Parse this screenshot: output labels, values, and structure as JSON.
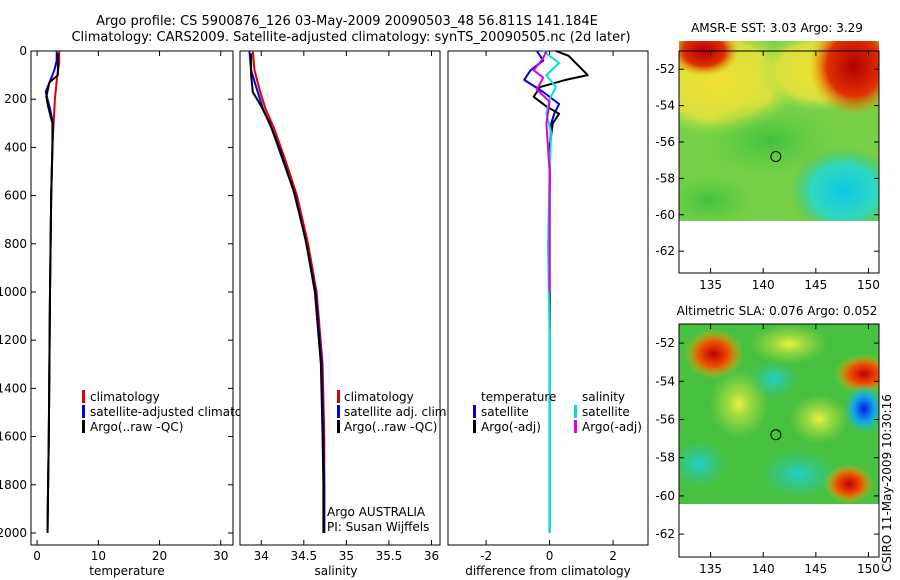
{
  "header": {
    "line1": "Argo profile: CS 5900876_126 03-May-2009 20090503_48 56.811S 141.184E",
    "line2": "Climatology: CARS2009. Satellite-adjusted climatology: synTS_20090505.nc (2d later)"
  },
  "credit": "CSIRO 11-May-2009 10:30:16",
  "chart_data": [
    {
      "type": "line",
      "id": "temperature",
      "xlabel": "temperature",
      "xlim": [
        -1,
        32
      ],
      "ylim": [
        0,
        2050
      ],
      "y_reversed": true,
      "xticks": [
        0,
        10,
        20,
        30
      ],
      "yticks": [
        0,
        200,
        400,
        600,
        800,
        1000,
        1200,
        1400,
        1600,
        1800,
        2000
      ],
      "legend": [
        "climatology",
        "satellite-adjusted climatology",
        "Argo(..raw -QC)"
      ],
      "series": [
        {
          "name": "climatology",
          "color": "#e00000",
          "x": [
            3.6,
            3.6,
            3.3,
            2.9,
            2.7,
            2.5,
            2.3,
            2.2,
            2.1,
            2.0,
            1.9,
            1.8,
            1.7
          ],
          "y": [
            0,
            50,
            100,
            200,
            300,
            400,
            600,
            800,
            1000,
            1300,
            1600,
            1800,
            2000
          ]
        },
        {
          "name": "satellite-adjusted climatology",
          "color": "#0000e0",
          "x": [
            3.2,
            3.2,
            2.8,
            1.4,
            2.1,
            2.6,
            2.5,
            2.3,
            2.2,
            2.1,
            2.0,
            1.9,
            1.8,
            1.7
          ],
          "y": [
            0,
            40,
            80,
            170,
            240,
            300,
            400,
            600,
            800,
            1000,
            1300,
            1600,
            1800,
            2000
          ]
        },
        {
          "name": "Argo(..raw -QC)",
          "color": "#000000",
          "x": [
            3.4,
            3.4,
            2.0,
            1.5,
            1.8,
            2.5,
            2.5,
            2.3,
            2.2,
            2.1,
            2.0,
            1.9,
            1.8,
            1.7
          ],
          "y": [
            10,
            100,
            130,
            190,
            230,
            300,
            400,
            600,
            800,
            1000,
            1300,
            1600,
            1800,
            2000
          ]
        }
      ]
    },
    {
      "type": "line",
      "id": "salinity",
      "xlabel": "salinity",
      "xlim": [
        33.75,
        36.1
      ],
      "ylim": [
        0,
        2050
      ],
      "y_reversed": true,
      "xticks": [
        34,
        34.5,
        35,
        35.5,
        36
      ],
      "legend": [
        "climatology",
        "satellite adj. clim.",
        "Argo(..raw -QC)"
      ],
      "notes": [
        "Argo AUSTRALIA",
        "PI: Susan Wijffels"
      ],
      "series": [
        {
          "name": "climatology",
          "color": "#e00000",
          "x": [
            33.9,
            33.92,
            33.98,
            34.05,
            34.15,
            34.28,
            34.42,
            34.55,
            34.65,
            34.72,
            34.74,
            34.74,
            34.74
          ],
          "y": [
            0,
            80,
            160,
            240,
            320,
            450,
            600,
            800,
            1000,
            1300,
            1600,
            1800,
            2000
          ]
        },
        {
          "name": "satellite adj. clim.",
          "color": "#0000e0",
          "x": [
            33.86,
            33.88,
            33.95,
            34.02,
            34.12,
            34.25,
            34.4,
            34.53,
            34.64,
            34.71,
            34.73,
            34.74,
            34.74
          ],
          "y": [
            0,
            80,
            160,
            240,
            320,
            450,
            600,
            800,
            1000,
            1300,
            1600,
            1800,
            2000
          ]
        },
        {
          "name": "Argo(..raw -QC)",
          "color": "#000000",
          "x": [
            33.88,
            33.88,
            33.9,
            34.0,
            34.1,
            34.23,
            34.38,
            34.52,
            34.63,
            34.7,
            34.72,
            34.73,
            34.73
          ],
          "y": [
            10,
            100,
            170,
            230,
            300,
            420,
            580,
            780,
            1000,
            1300,
            1600,
            1800,
            2000
          ]
        }
      ]
    },
    {
      "type": "line",
      "id": "difference",
      "xlabel": "difference from climatology",
      "xlim": [
        -3.2,
        3.1
      ],
      "ylim": [
        0,
        2050
      ],
      "y_reversed": true,
      "xticks": [
        -2,
        0,
        2
      ],
      "legend_temperature": {
        "heading": "temperature",
        "items": [
          "satellite",
          "Argo(-adj)"
        ]
      },
      "legend_salinity": {
        "heading": "salinity",
        "items": [
          "satellite",
          "Argo(-adj)"
        ]
      },
      "series": [
        {
          "name": "temperature satellite",
          "color": "#0000e0",
          "x": [
            -0.4,
            -0.2,
            -0.6,
            -0.8,
            -0.2,
            0.3,
            0.15,
            0.05,
            0.02,
            0.0,
            0.0,
            0.0
          ],
          "y": [
            0,
            40,
            80,
            120,
            170,
            220,
            260,
            300,
            400,
            600,
            1000,
            2000
          ]
        },
        {
          "name": "temperature Argo(-adj)",
          "color": "#000000",
          "x": [
            0.2,
            0.6,
            1.2,
            0.5,
            -0.3,
            -0.5,
            -0.1,
            0.3,
            0.1,
            0.0,
            0.0,
            0.0
          ],
          "y": [
            0,
            20,
            100,
            120,
            150,
            190,
            230,
            260,
            300,
            400,
            1000,
            2000
          ]
        },
        {
          "name": "salinity satellite",
          "color": "#00e0e0",
          "x": [
            -0.2,
            0.3,
            -0.1,
            0.2,
            0.0,
            -0.1,
            0.05,
            0.0,
            -0.05,
            0.0,
            0.0
          ],
          "y": [
            0,
            50,
            100,
            150,
            200,
            260,
            340,
            500,
            800,
            1200,
            2000
          ]
        },
        {
          "name": "salinity Argo(-adj)",
          "color": "#e000e0",
          "x": [
            -0.1,
            -0.2,
            -0.5,
            -0.2,
            -0.4,
            0.0,
            -0.1,
            0.0,
            0.0
          ],
          "y": [
            0,
            30,
            80,
            110,
            160,
            210,
            300,
            500,
            1000
          ]
        }
      ]
    },
    {
      "type": "heatmap",
      "id": "sst-map",
      "title": "AMSR-E SST: 3.03 Argo: 3.29",
      "xlim": [
        132,
        151
      ],
      "ylim": [
        -63.2,
        -51
      ],
      "xticks": [
        135,
        140,
        145,
        150
      ],
      "yticks": [
        -52,
        -54,
        -56,
        -58,
        -60,
        -62
      ],
      "marker": [
        141.2,
        -56.8
      ],
      "data_extent_ymin": -60.1
    },
    {
      "type": "heatmap",
      "id": "sla-map",
      "title": "Altimetric SLA: 0.076 Argo: 0.052",
      "xlim": [
        132,
        151
      ],
      "ylim": [
        -63.2,
        -51
      ],
      "xticks": [
        135,
        140,
        145,
        150
      ],
      "yticks": [
        -52,
        -54,
        -56,
        -58,
        -60,
        -62
      ],
      "marker": [
        141.2,
        -56.8
      ],
      "data_extent_ymin": -60.1
    }
  ]
}
